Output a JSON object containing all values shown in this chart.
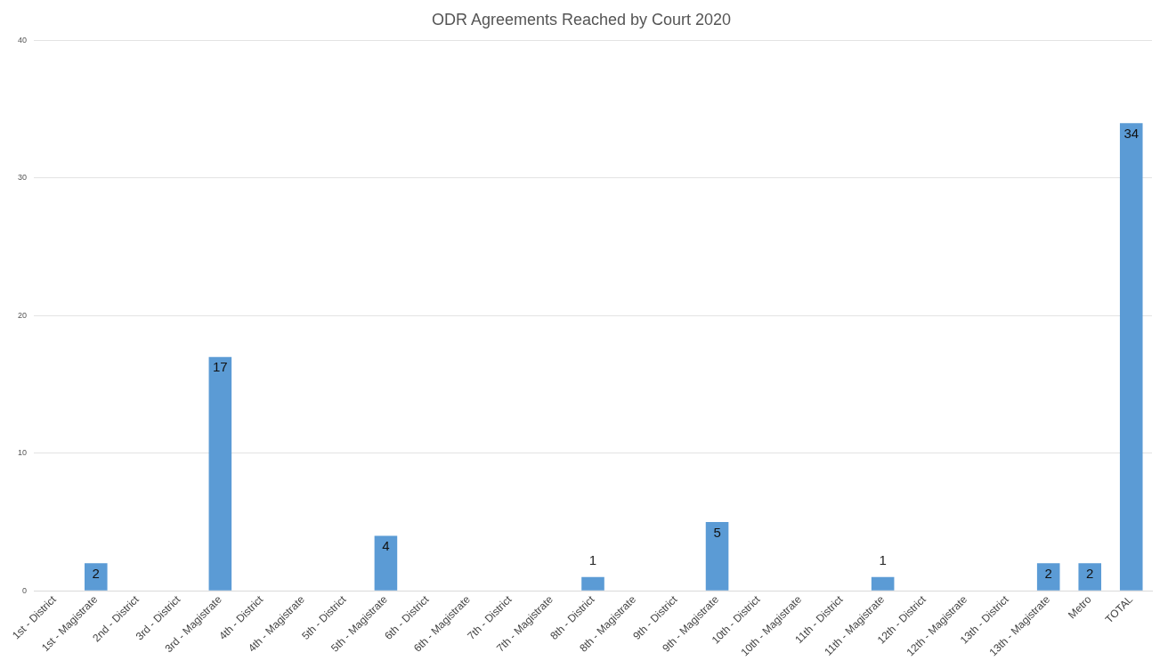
{
  "chart_data": {
    "type": "bar",
    "title": "ODR Agreements Reached by Court 2020",
    "categories": [
      "1st - District",
      "1st - Magistrate",
      "2nd - District",
      "3rd - District",
      "3rd - Magistrate",
      "4th - District",
      "4th - Magistrate",
      "5th - District",
      "5th - Magistrate",
      "6th - District",
      "6th - Magistrate",
      "7th - District",
      "7th - Magistrate",
      "8th - District",
      "8th - Magistrate",
      "9th - District",
      "9th - Magistrate",
      "10th - District",
      "10th - Magistrate",
      "11th - District",
      "11th - Magistrate",
      "12th - District",
      "12th - Magistrate",
      "13th - District",
      "13th - Magistrate",
      "Metro",
      "TOTAL"
    ],
    "values": [
      0,
      2,
      0,
      0,
      17,
      0,
      0,
      0,
      4,
      0,
      0,
      0,
      0,
      1,
      0,
      0,
      5,
      0,
      0,
      0,
      1,
      0,
      0,
      0,
      2,
      2,
      34
    ],
    "value_labels": [
      null,
      "2",
      null,
      null,
      "17",
      null,
      null,
      null,
      "4",
      null,
      null,
      null,
      null,
      "1",
      null,
      null,
      "5",
      null,
      null,
      null,
      "1",
      null,
      null,
      null,
      "2",
      "2",
      "34"
    ],
    "color": "#5b9bd5",
    "ylim": [
      0,
      40
    ],
    "yticks": [
      0,
      10,
      20,
      30,
      40
    ],
    "grid": "y"
  }
}
